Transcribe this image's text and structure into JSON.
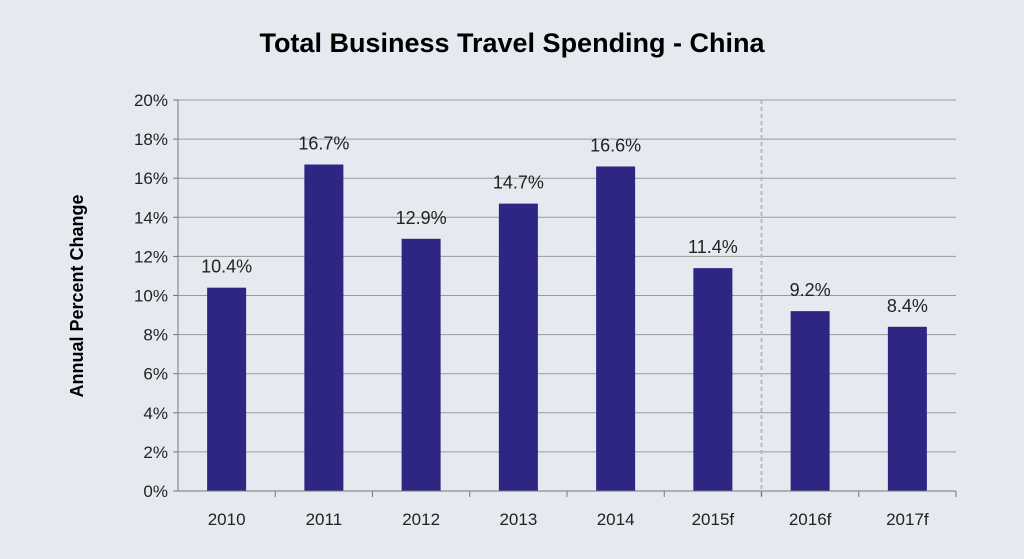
{
  "chart_data": {
    "type": "bar",
    "title": "Total Business Travel Spending - China",
    "ylabel": "Annual Percent Change",
    "xlabel": "",
    "categories": [
      "2010",
      "2011",
      "2012",
      "2013",
      "2014",
      "2015f",
      "2016f",
      "2017f"
    ],
    "values": [
      10.4,
      16.7,
      12.9,
      14.7,
      16.6,
      11.4,
      9.2,
      8.4
    ],
    "data_labels": [
      "10.4%",
      "16.7%",
      "12.9%",
      "14.7%",
      "16.6%",
      "11.4%",
      "9.2%",
      "8.4%"
    ],
    "ylim": [
      0,
      20
    ],
    "yticks": [
      "0%",
      "2%",
      "4%",
      "6%",
      "8%",
      "10%",
      "12%",
      "14%",
      "16%",
      "18%",
      "20%"
    ],
    "grid": true,
    "forecast_divider_after": "2015f",
    "colors": {
      "bar": "#2e2683",
      "grid": "#9a9a9a",
      "divider": "#b9b2d9",
      "background": "#e6e9f0"
    }
  }
}
